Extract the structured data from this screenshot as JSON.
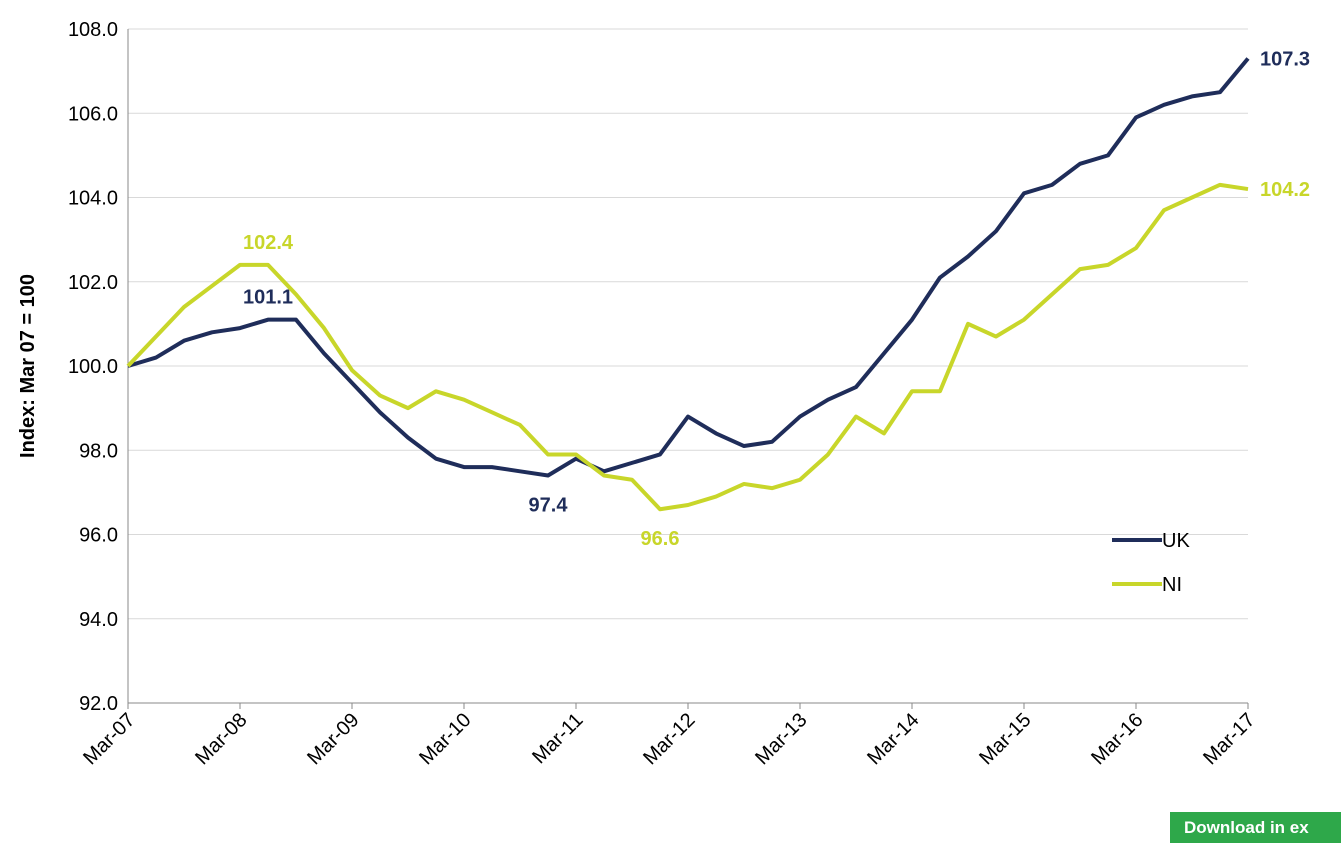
{
  "chart_data": {
    "type": "line",
    "y_label": "Index: Mar 07 = 100",
    "categories": [
      "Mar-07",
      null,
      null,
      null,
      "Mar-08",
      null,
      null,
      null,
      "Mar-09",
      null,
      null,
      null,
      "Mar-10",
      null,
      null,
      null,
      "Mar-11",
      null,
      null,
      null,
      "Mar-12",
      null,
      null,
      null,
      "Mar-13",
      null,
      null,
      null,
      "Mar-14",
      null,
      null,
      null,
      "Mar-15",
      null,
      null,
      null,
      "Mar-16",
      null,
      null,
      null,
      "Mar-17"
    ],
    "series": [
      {
        "name": "UK",
        "color": "#1f2d5a",
        "values": [
          100.0,
          100.2,
          100.6,
          100.8,
          100.9,
          101.1,
          101.1,
          100.3,
          99.6,
          98.9,
          98.3,
          97.8,
          97.6,
          97.6,
          97.5,
          97.4,
          97.8,
          97.5,
          97.7,
          97.9,
          98.8,
          98.4,
          98.1,
          98.2,
          98.8,
          99.2,
          99.5,
          100.3,
          101.1,
          102.1,
          102.6,
          103.2,
          104.1,
          104.3,
          104.8,
          105.0,
          105.9,
          106.2,
          106.4,
          106.5,
          107.3
        ],
        "value_labels": [
          null,
          null,
          null,
          null,
          null,
          "101.1",
          null,
          null,
          null,
          null,
          null,
          null,
          null,
          null,
          null,
          "97.4",
          null,
          null,
          null,
          null,
          null,
          null,
          null,
          null,
          null,
          null,
          null,
          null,
          null,
          null,
          null,
          null,
          null,
          null,
          null,
          null,
          null,
          null,
          null,
          null,
          "107.3"
        ]
      },
      {
        "name": "NI",
        "color": "#c8d62a",
        "values": [
          100.0,
          100.7,
          101.4,
          101.9,
          102.4,
          102.4,
          101.7,
          100.9,
          99.9,
          99.3,
          99.0,
          99.4,
          99.2,
          98.9,
          98.6,
          97.9,
          97.9,
          97.4,
          97.3,
          96.6,
          96.7,
          96.9,
          97.2,
          97.1,
          97.3,
          97.9,
          98.8,
          98.4,
          99.4,
          99.4,
          101.0,
          100.7,
          101.1,
          101.7,
          102.3,
          102.4,
          102.8,
          103.7,
          104.0,
          104.3,
          104.2
        ],
        "value_labels": [
          null,
          null,
          null,
          null,
          null,
          "102.4",
          null,
          null,
          null,
          null,
          null,
          null,
          null,
          null,
          null,
          null,
          null,
          null,
          null,
          "96.6",
          null,
          null,
          null,
          null,
          null,
          null,
          null,
          null,
          null,
          null,
          null,
          null,
          null,
          null,
          null,
          null,
          null,
          null,
          null,
          null,
          "104.2"
        ]
      }
    ],
    "ylim": [
      92,
      108
    ],
    "yticks": [
      {
        "value": 92,
        "label": "92.0"
      },
      {
        "value": 94,
        "label": "94.0"
      },
      {
        "value": 96,
        "label": "96.0"
      },
      {
        "value": 98,
        "label": "98.0"
      },
      {
        "value": 100,
        "label": "100.0"
      },
      {
        "value": 102,
        "label": "102.0"
      },
      {
        "value": 104,
        "label": "104.0"
      },
      {
        "value": 106,
        "label": "106.0"
      },
      {
        "value": 108,
        "label": "108.0"
      }
    ],
    "grid": true,
    "legend": "lower right"
  },
  "download_button": "Download in ex"
}
